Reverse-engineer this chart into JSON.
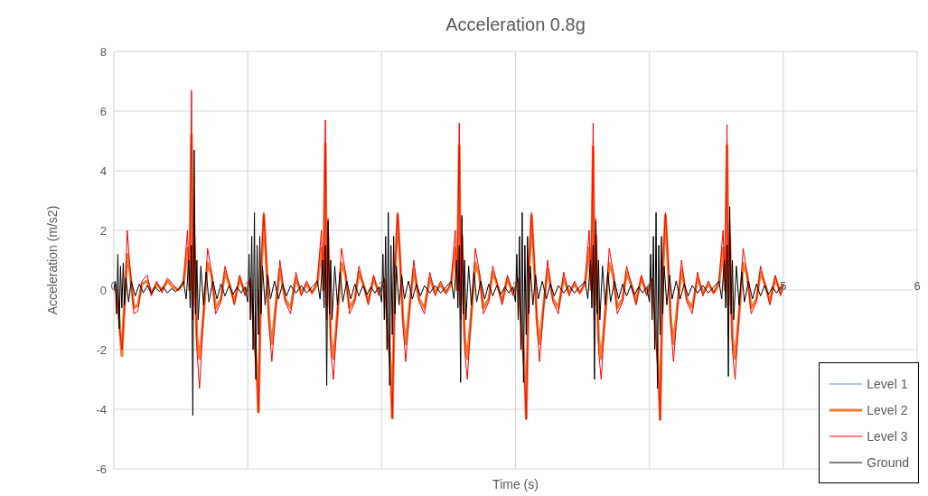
{
  "chart_data": {
    "type": "line",
    "title": "Acceleration 0.8g",
    "xlabel": "Time (s)",
    "ylabel": "Acceleration (m/s2)",
    "xlim": [
      0,
      6
    ],
    "xticks": [
      0,
      1,
      2,
      3,
      4,
      5,
      6
    ],
    "ylim": [
      -6,
      8
    ],
    "yticks": [
      -6,
      -4,
      -2,
      0,
      2,
      4,
      6,
      8
    ],
    "grid": true,
    "legend": "bottom right",
    "marker": "none",
    "line_style": "solid",
    "x": [
      0,
      0.02,
      0.04,
      0.06,
      0.08,
      0.1,
      0.12,
      0.15,
      0.18,
      0.21,
      0.25,
      0.28,
      0.32,
      0.36,
      0.4,
      0.44,
      0.48,
      0.52,
      0.55,
      0.565,
      0.58,
      0.59,
      0.6,
      0.62,
      0.64,
      0.67,
      0.7,
      0.73,
      0.76,
      0.8,
      0.83,
      0.87,
      0.9,
      0.94,
      0.98,
      1.02,
      1.05,
      1.07,
      1.08,
      1.1,
      1.12,
      1.14,
      1.16,
      1.18,
      1.21,
      1.24,
      1.28,
      1.32,
      1.36,
      1.4,
      1.44,
      1.48,
      1.52,
      1.55,
      1.565,
      1.58,
      1.59,
      1.6,
      1.62,
      1.64,
      1.67,
      1.7,
      1.73,
      1.76,
      1.8,
      1.83,
      1.87,
      1.9,
      1.94,
      1.98,
      2.02,
      2.05,
      2.07,
      2.08,
      2.1,
      2.12,
      2.14,
      2.16,
      2.18,
      2.21,
      2.24,
      2.28,
      2.32,
      2.36,
      2.4,
      2.44,
      2.48,
      2.52,
      2.55,
      2.565,
      2.58,
      2.59,
      2.6,
      2.62,
      2.64,
      2.67,
      2.7,
      2.73,
      2.76,
      2.8,
      2.83,
      2.87,
      2.9,
      2.94,
      2.98,
      3.02,
      3.05,
      3.07,
      3.08,
      3.1,
      3.12,
      3.14,
      3.16,
      3.18,
      3.21,
      3.24,
      3.28,
      3.32,
      3.36,
      3.4,
      3.44,
      3.48,
      3.52,
      3.55,
      3.565,
      3.58,
      3.59,
      3.6,
      3.62,
      3.64,
      3.67,
      3.7,
      3.73,
      3.76,
      3.8,
      3.83,
      3.87,
      3.9,
      3.94,
      3.98,
      4.02,
      4.05,
      4.07,
      4.08,
      4.1,
      4.12,
      4.14,
      4.16,
      4.18,
      4.21,
      4.24,
      4.28,
      4.32,
      4.36,
      4.4,
      4.44,
      4.48,
      4.52,
      4.55,
      4.565,
      4.58,
      4.59,
      4.6,
      4.62,
      4.64,
      4.67,
      4.7,
      4.73,
      4.76,
      4.8,
      4.83,
      4.87,
      4.9,
      4.94,
      4.98,
      5.0
    ],
    "series": [
      {
        "name": "Level 1",
        "color": "#5b9bd5",
        "values": [
          null,
          null,
          null,
          null,
          null,
          null,
          null,
          null,
          null,
          null,
          null,
          null,
          null,
          null,
          null,
          null,
          null,
          null,
          null,
          null,
          null,
          null,
          null,
          null,
          null,
          null,
          null,
          null,
          null,
          null,
          null,
          null,
          null,
          null,
          null,
          null,
          null,
          null,
          null,
          null,
          null,
          null,
          null,
          null,
          null,
          null,
          null,
          null,
          null,
          null,
          null,
          null,
          null,
          null,
          null,
          null,
          null,
          null,
          null,
          null,
          null,
          null,
          null,
          null,
          null,
          null,
          null,
          null,
          null,
          null,
          null,
          null,
          null,
          null,
          null,
          null,
          null,
          null,
          null,
          null,
          null,
          null,
          null,
          null,
          null,
          null,
          null,
          null,
          null,
          null,
          null,
          null,
          null,
          null,
          null,
          null,
          null,
          null,
          null,
          null,
          null,
          null,
          null,
          null,
          null,
          null,
          null,
          null,
          null,
          null,
          null,
          null,
          null,
          null,
          null,
          null,
          null,
          null,
          null,
          null,
          null,
          null,
          null,
          null,
          null,
          null,
          null,
          null,
          null,
          null,
          null,
          null,
          null,
          null,
          null,
          null,
          null,
          null,
          null,
          null,
          null,
          null,
          null,
          null,
          null,
          null,
          null,
          null,
          null,
          null,
          null,
          null,
          null,
          null,
          null,
          null,
          null,
          null,
          null,
          null,
          null,
          null,
          null,
          null,
          null,
          null,
          null,
          null,
          null,
          null,
          null,
          null,
          null,
          null,
          null,
          null
        ]
      },
      {
        "name": "Level 2",
        "color": "#ed7d31",
        "values": [
          0,
          0,
          -1.0,
          -2.2,
          -0.4,
          1.2,
          0.6,
          -0.6,
          -0.5,
          0.2,
          0.3,
          -0.1,
          0.2,
          0,
          0.3,
          0.1,
          0,
          0.2,
          1.4,
          0.0,
          5.2,
          -0.5,
          1.8,
          -1.6,
          -2.3,
          -0.8,
          0.9,
          0.5,
          -0.6,
          -0.3,
          0.6,
          0.1,
          -0.4,
          0.4,
          -0.1,
          0.3,
          -1.5,
          -2.8,
          -4.1,
          0.5,
          2.5,
          0.8,
          -1.0,
          -1.8,
          -0.5,
          0.7,
          -0.3,
          -0.6,
          0.4,
          -0.1,
          0.2,
          -0.1,
          0.2,
          1.4,
          0.0,
          4.9,
          -0.5,
          1.8,
          -1.6,
          -2.3,
          -0.8,
          0.9,
          0.5,
          -0.6,
          -0.3,
          0.6,
          0.1,
          -0.4,
          0.4,
          -0.1,
          0.3,
          -1.5,
          -2.8,
          -4.3,
          0.5,
          2.5,
          0.8,
          -1.0,
          -1.8,
          -0.5,
          0.7,
          -0.3,
          -0.6,
          0.4,
          -0.1,
          0.2,
          -0.1,
          0.2,
          1.4,
          0.0,
          4.85,
          -0.5,
          1.8,
          -1.6,
          -2.3,
          -0.8,
          0.9,
          0.5,
          -0.6,
          -0.3,
          0.6,
          0.1,
          -0.4,
          0.4,
          -0.1,
          0.3,
          -1.5,
          -2.8,
          -4.3,
          0.5,
          2.5,
          0.8,
          -1.0,
          -1.8,
          -0.5,
          0.7,
          -0.3,
          -0.6,
          0.4,
          -0.1,
          0.2,
          -0.1,
          0.2,
          1.4,
          0.0,
          4.8,
          -0.5,
          1.8,
          -1.6,
          -2.3,
          -0.8,
          0.9,
          0.5,
          -0.6,
          -0.3,
          0.6,
          0.1,
          -0.4,
          0.4,
          -0.1,
          0.3,
          -1.5,
          -2.8,
          -4.35,
          0.5,
          2.5,
          0.8,
          -1.0,
          -1.8,
          -0.5,
          0.7,
          -0.3,
          -0.6,
          0.4,
          -0.1,
          0.2,
          -0.1,
          0.2,
          1.4,
          0.0,
          4.85,
          -0.5,
          1.8,
          -1.6,
          -2.3,
          -0.8,
          0.9,
          0.5,
          -0.6,
          -0.3,
          0.6,
          0.1,
          -0.4,
          0.4,
          -0.1,
          0.2
        ]
      },
      {
        "name": "Level 3",
        "color": "#ff0000",
        "values": [
          0,
          0.1,
          -1.2,
          -2.0,
          -0.5,
          2.0,
          0.8,
          -0.8,
          -0.7,
          0.3,
          0.5,
          -0.2,
          0.3,
          -0.1,
          0.4,
          0.2,
          0.0,
          0.3,
          2.0,
          0.0,
          6.7,
          -1.0,
          2.4,
          -2.0,
          -3.3,
          -0.8,
          1.4,
          0.6,
          -0.8,
          -0.4,
          0.8,
          0.1,
          -0.5,
          0.5,
          -0.2,
          0.4,
          -1.8,
          -3.2,
          -4.1,
          0.8,
          2.6,
          1.0,
          -1.2,
          -2.4,
          -0.6,
          1.0,
          -0.4,
          -0.8,
          0.6,
          -0.2,
          0.3,
          -0.1,
          0.3,
          2.0,
          0.0,
          5.7,
          -1.0,
          2.4,
          -2.0,
          -3.0,
          -0.8,
          1.4,
          0.6,
          -0.8,
          -0.4,
          0.8,
          0.1,
          -0.5,
          0.5,
          -0.2,
          0.4,
          -1.8,
          -3.2,
          -4.3,
          0.8,
          2.6,
          1.0,
          -1.2,
          -2.4,
          -0.6,
          1.0,
          -0.4,
          -0.8,
          0.6,
          -0.2,
          0.3,
          -0.1,
          0.3,
          2.0,
          0.0,
          5.6,
          -1.0,
          2.4,
          -2.0,
          -3.0,
          -0.8,
          1.4,
          0.6,
          -0.8,
          -0.4,
          0.8,
          0.1,
          -0.5,
          0.5,
          -0.2,
          0.4,
          -1.8,
          -3.2,
          -4.35,
          0.8,
          2.6,
          1.0,
          -1.2,
          -2.4,
          -0.6,
          1.0,
          -0.4,
          -0.8,
          0.6,
          -0.2,
          0.3,
          -0.1,
          0.3,
          2.0,
          0.0,
          5.6,
          -1.0,
          2.4,
          -2.0,
          -3.0,
          -0.8,
          1.4,
          0.6,
          -0.8,
          -0.4,
          0.8,
          0.1,
          -0.5,
          0.5,
          -0.2,
          0.4,
          -1.8,
          -3.2,
          -4.35,
          0.8,
          2.6,
          1.0,
          -1.2,
          -2.4,
          -0.6,
          1.0,
          -0.4,
          -0.8,
          0.6,
          -0.2,
          0.3,
          -0.1,
          0.3,
          2.0,
          0.0,
          5.55,
          -1.0,
          2.4,
          -2.0,
          -3.0,
          -0.8,
          1.4,
          0.6,
          -0.8,
          -0.4,
          0.8,
          0.1,
          -0.5,
          0.5,
          -0.2,
          0.2
        ]
      },
      {
        "name": "Ground",
        "color": "#000000",
        "x": [
          0,
          0.01,
          0.02,
          0.03,
          0.04,
          0.05,
          0.06,
          0.07,
          0.08,
          0.09,
          0.11,
          0.13,
          0.16,
          0.19,
          0.22,
          0.25,
          0.28,
          0.31,
          0.34,
          0.37,
          0.4,
          0.43,
          0.46,
          0.49,
          0.52,
          0.54,
          0.56,
          0.57,
          0.58,
          0.59,
          0.6,
          0.61,
          0.62,
          0.63,
          0.65,
          0.67,
          0.69,
          0.71,
          0.74,
          0.77,
          0.8,
          0.83,
          0.86,
          0.89,
          0.92,
          0.95,
          0.98,
          1.0,
          1.01,
          1.02,
          1.03,
          1.04,
          1.05,
          1.06,
          1.07,
          1.08,
          1.09,
          1.1,
          1.11,
          1.13,
          1.15,
          1.17,
          1.2,
          1.23,
          1.26,
          1.29,
          1.32,
          1.36,
          1.4,
          1.44,
          1.48,
          1.52,
          1.54,
          1.56,
          1.57,
          1.58,
          1.59,
          1.6,
          1.61,
          1.62,
          1.63,
          1.65,
          1.67,
          1.69,
          1.71,
          1.74,
          1.77,
          1.8,
          1.83,
          1.86,
          1.89,
          1.92,
          1.95,
          1.98,
          2.0,
          2.01,
          2.02,
          2.03,
          2.04,
          2.05,
          2.06,
          2.07,
          2.08,
          2.09,
          2.1,
          2.11,
          2.13,
          2.15,
          2.17,
          2.2,
          2.23,
          2.26,
          2.29,
          2.32,
          2.36,
          2.4,
          2.44,
          2.48,
          2.52,
          2.54,
          2.56,
          2.57,
          2.58,
          2.59,
          2.6,
          2.61,
          2.62,
          2.63,
          2.65,
          2.67,
          2.69,
          2.71,
          2.74,
          2.77,
          2.8,
          2.83,
          2.86,
          2.89,
          2.92,
          2.95,
          2.98,
          3.0,
          3.01,
          3.02,
          3.03,
          3.04,
          3.05,
          3.06,
          3.07,
          3.08,
          3.09,
          3.1,
          3.11,
          3.13,
          3.15,
          3.17,
          3.2,
          3.23,
          3.26,
          3.29,
          3.32,
          3.36,
          3.4,
          3.44,
          3.48,
          3.52,
          3.54,
          3.56,
          3.57,
          3.58,
          3.59,
          3.6,
          3.61,
          3.62,
          3.63,
          3.65,
          3.67,
          3.69,
          3.71,
          3.74,
          3.77,
          3.8,
          3.83,
          3.86,
          3.89,
          3.92,
          3.95,
          3.98,
          4.0,
          4.01,
          4.02,
          4.03,
          4.04,
          4.05,
          4.06,
          4.07,
          4.08,
          4.09,
          4.1,
          4.11,
          4.13,
          4.15,
          4.17,
          4.2,
          4.23,
          4.26,
          4.29,
          4.32,
          4.36,
          4.4,
          4.44,
          4.48,
          4.52,
          4.54,
          4.56,
          4.57,
          4.58,
          4.59,
          4.6,
          4.61,
          4.62,
          4.63,
          4.65,
          4.67,
          4.69,
          4.71,
          4.74,
          4.77,
          4.8,
          4.83,
          4.86,
          4.89,
          4.92,
          4.95,
          4.98,
          5.0
        ],
        "values": [
          0,
          0.3,
          -0.8,
          1.2,
          -1.3,
          0.8,
          -0.6,
          0.9,
          -0.5,
          0.4,
          -0.4,
          0.3,
          -0.2,
          0.2,
          -0.1,
          0.15,
          -0.1,
          0.1,
          -0.05,
          0.1,
          -0.1,
          0.05,
          -0.05,
          0.05,
          0.3,
          -0.3,
          1.0,
          -0.6,
          1.5,
          -4.2,
          4.7,
          -0.8,
          1.0,
          -1.0,
          0.8,
          -0.5,
          0.6,
          -0.4,
          0.3,
          -0.3,
          0.2,
          -0.2,
          0.15,
          -0.15,
          0.1,
          -0.1,
          0.1,
          -0.4,
          1.2,
          -1.0,
          1.8,
          -2.0,
          2.6,
          -3.0,
          1.5,
          -1.5,
          1.8,
          -0.8,
          0.8,
          -0.5,
          0.5,
          -0.3,
          0.3,
          -0.3,
          0.2,
          -0.2,
          0.15,
          -0.1,
          0.15,
          -0.1,
          0.1,
          0.3,
          -0.3,
          1.0,
          -0.6,
          1.5,
          -3.2,
          2.3,
          -0.8,
          1.0,
          -1.0,
          0.8,
          -0.5,
          0.6,
          -0.4,
          0.3,
          -0.3,
          0.2,
          -0.2,
          0.15,
          -0.15,
          0.1,
          -0.1,
          0.1,
          -0.4,
          1.2,
          -1.0,
          1.8,
          -2.0,
          2.6,
          -3.2,
          1.5,
          -1.5,
          1.8,
          -0.8,
          0.8,
          -0.5,
          0.5,
          -0.3,
          0.3,
          -0.3,
          0.2,
          -0.2,
          0.15,
          -0.1,
          0.15,
          -0.1,
          0.1,
          0.3,
          -0.3,
          1.0,
          -0.6,
          1.5,
          -3.1,
          2.5,
          -0.8,
          1.0,
          -1.0,
          0.8,
          -0.5,
          0.6,
          -0.4,
          0.3,
          -0.3,
          0.2,
          -0.2,
          0.15,
          -0.15,
          0.1,
          -0.1,
          0.1,
          -0.4,
          1.2,
          -1.0,
          1.8,
          -2.0,
          2.6,
          -3.1,
          1.5,
          -1.5,
          1.8,
          -0.8,
          0.8,
          -0.5,
          0.5,
          -0.3,
          0.3,
          -0.3,
          0.2,
          -0.2,
          0.15,
          -0.1,
          0.15,
          -0.1,
          0.1,
          0.3,
          -0.3,
          1.0,
          -0.6,
          1.5,
          -3.0,
          2.3,
          -0.8,
          1.0,
          -1.0,
          0.8,
          -0.5,
          0.6,
          -0.4,
          0.3,
          -0.3,
          0.2,
          -0.2,
          0.15,
          -0.15,
          0.1,
          -0.1,
          0.1,
          -0.4,
          1.2,
          -1.0,
          1.8,
          -2.0,
          2.6,
          -3.3,
          1.5,
          -1.5,
          1.8,
          -0.8,
          0.8,
          -0.5,
          0.5,
          -0.3,
          0.3,
          -0.3,
          0.2,
          -0.2,
          0.15,
          -0.1,
          0.15,
          -0.1,
          0.1,
          0.3,
          -0.3,
          1.0,
          -0.6,
          1.5,
          -2.9,
          2.8,
          -0.8,
          1.0,
          -1.0,
          0.8,
          -0.5,
          0.6,
          -0.4,
          0.3,
          -0.3,
          0.2,
          -0.2,
          0.15,
          -0.15,
          0.1,
          -0.1,
          0.1,
          0
        ]
      }
    ]
  }
}
